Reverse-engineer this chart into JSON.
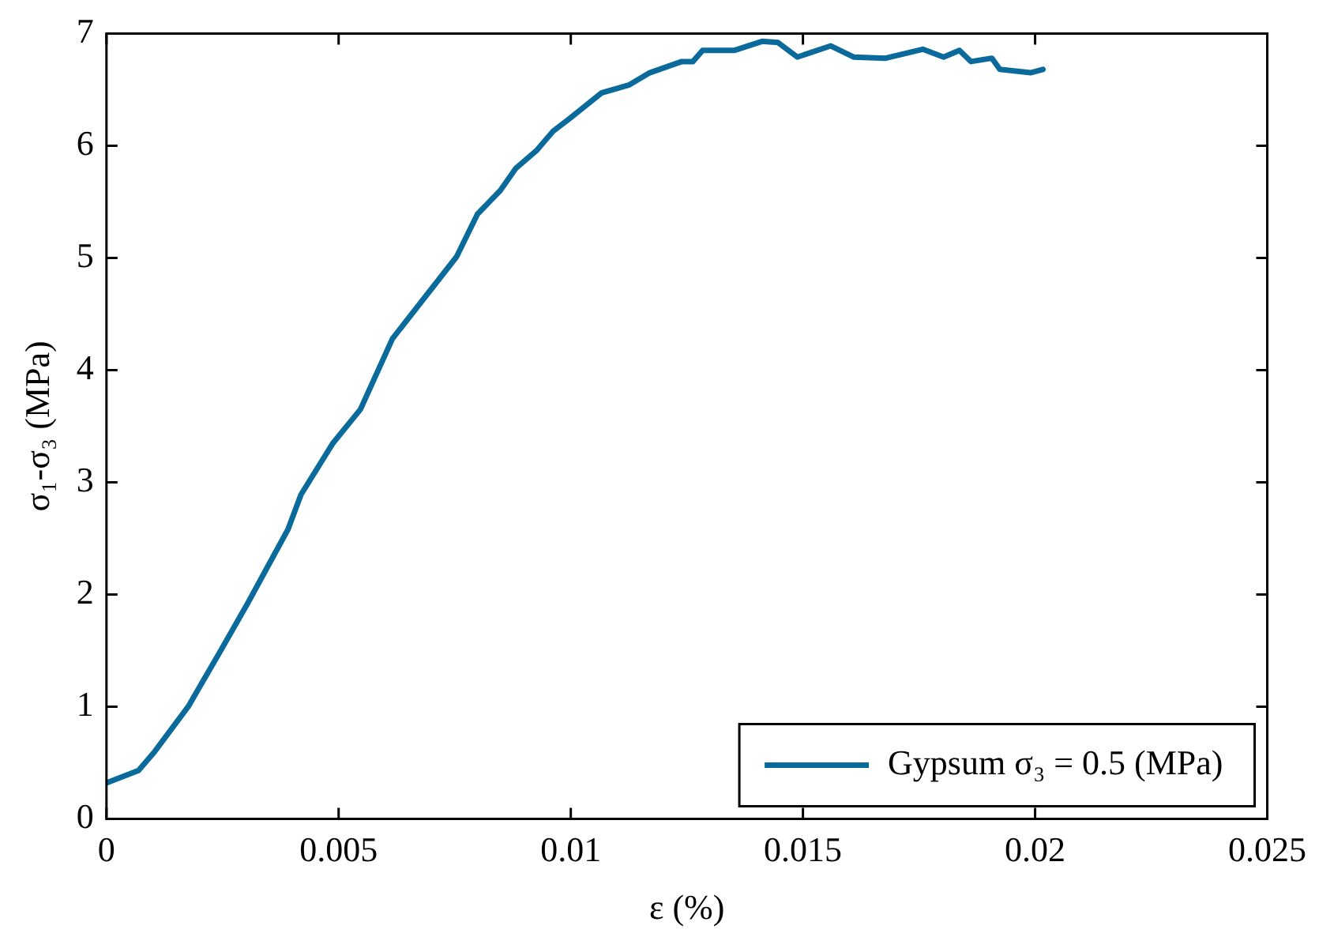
{
  "chart_data": {
    "type": "line",
    "xlabel": "ε (%)",
    "ylabel": "σ₁-σ₃ (MPa)",
    "xlim": [
      0,
      0.025
    ],
    "xticks": [
      0,
      0.005,
      0.01,
      0.015,
      0.02,
      0.025
    ],
    "ylim": [
      0,
      7
    ],
    "yticks": [
      0,
      1,
      2,
      3,
      4,
      5,
      6,
      7
    ],
    "grid": false,
    "legend": "bottom right",
    "marker": "none",
    "line_style": "solid",
    "series": [
      {
        "name": "Gypsum σ₃ = 0.5 (MPa)",
        "color": "#0a6a9b",
        "x": [
          0,
          0.00069,
          0.00104,
          0.00176,
          0.00246,
          0.00304,
          0.00391,
          0.00419,
          0.00488,
          0.00547,
          0.00616,
          0.00754,
          0.00799,
          0.00848,
          0.00882,
          0.00927,
          0.00962,
          0.00997,
          0.01066,
          0.011,
          0.01125,
          0.0117,
          0.01239,
          0.01263,
          0.01284,
          0.01353,
          0.01412,
          0.01446,
          0.01488,
          0.0156,
          0.01609,
          0.01678,
          0.01758,
          0.01803,
          0.01837,
          0.01862,
          0.01907,
          0.01924,
          0.0199,
          0.02017
        ],
        "values": [
          0.32,
          0.43,
          0.6,
          1.0,
          1.5,
          1.92,
          2.58,
          2.89,
          3.35,
          3.65,
          4.28,
          5.01,
          5.39,
          5.6,
          5.8,
          5.96,
          6.13,
          6.24,
          6.47,
          6.51,
          6.54,
          6.65,
          6.75,
          6.75,
          6.85,
          6.85,
          6.93,
          6.92,
          6.79,
          6.89,
          6.79,
          6.78,
          6.86,
          6.79,
          6.85,
          6.75,
          6.78,
          6.68,
          6.65,
          6.68
        ]
      }
    ]
  }
}
